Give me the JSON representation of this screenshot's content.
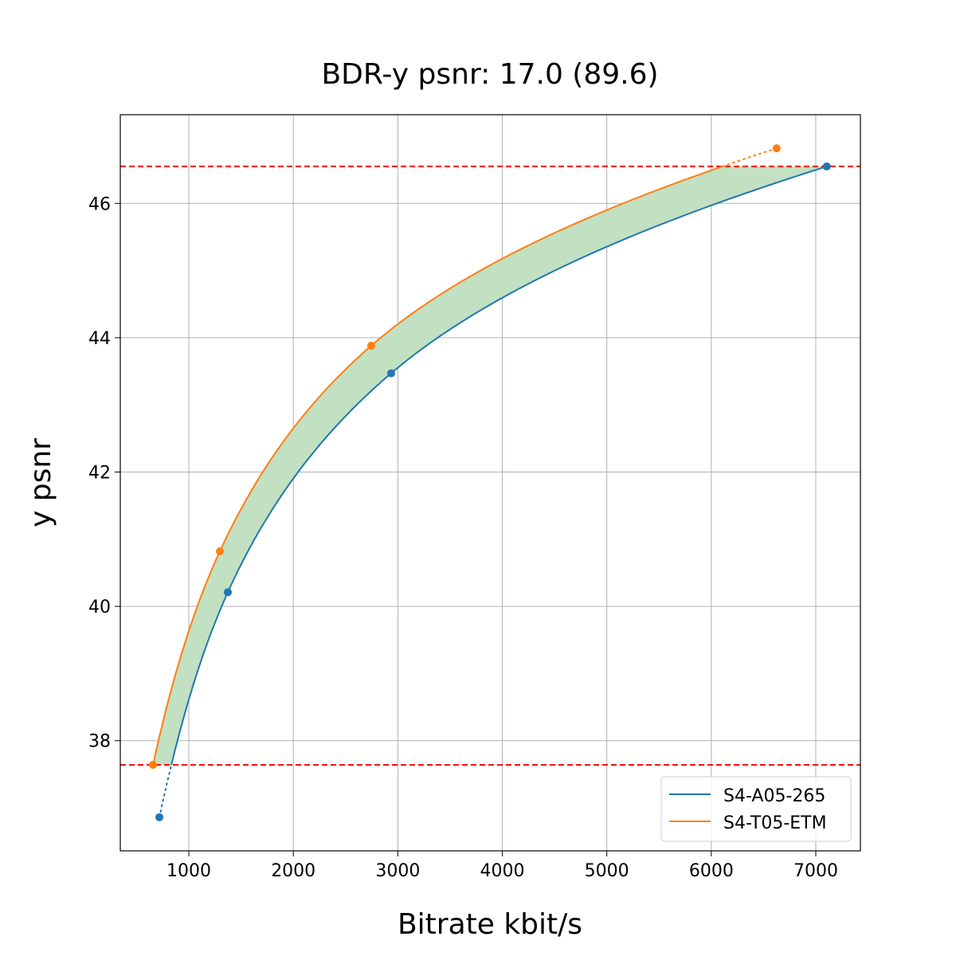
{
  "chart_data": {
    "type": "line",
    "title": "BDR-y psnr: 17.0 (89.6)",
    "xlabel": "Bitrate kbit/s",
    "ylabel": "y psnr",
    "xlim": [
      344,
      7427
    ],
    "ylim": [
      36.36,
      47.32
    ],
    "xticks": [
      1000,
      2000,
      3000,
      4000,
      5000,
      6000,
      7000
    ],
    "yticks": [
      38,
      40,
      42,
      44,
      46
    ],
    "grid": true,
    "legend_position": "bottom-right",
    "series": [
      {
        "name": "S4-A05-265",
        "color": "#1f77b4",
        "x": [
          718,
          1373,
          2936,
          7105
        ],
        "y": [
          36.86,
          40.21,
          43.47,
          46.55
        ]
      },
      {
        "name": "S4-T05-ETM",
        "color": "#ff7f0e",
        "x": [
          657,
          1297,
          2745,
          6625
        ],
        "y": [
          37.64,
          40.82,
          43.88,
          46.82
        ]
      }
    ],
    "reference_lines": {
      "y": [
        37.64,
        46.55
      ],
      "color": "#ff0000",
      "style": "dashed"
    },
    "fill_between_color": "#c2e0c2"
  }
}
